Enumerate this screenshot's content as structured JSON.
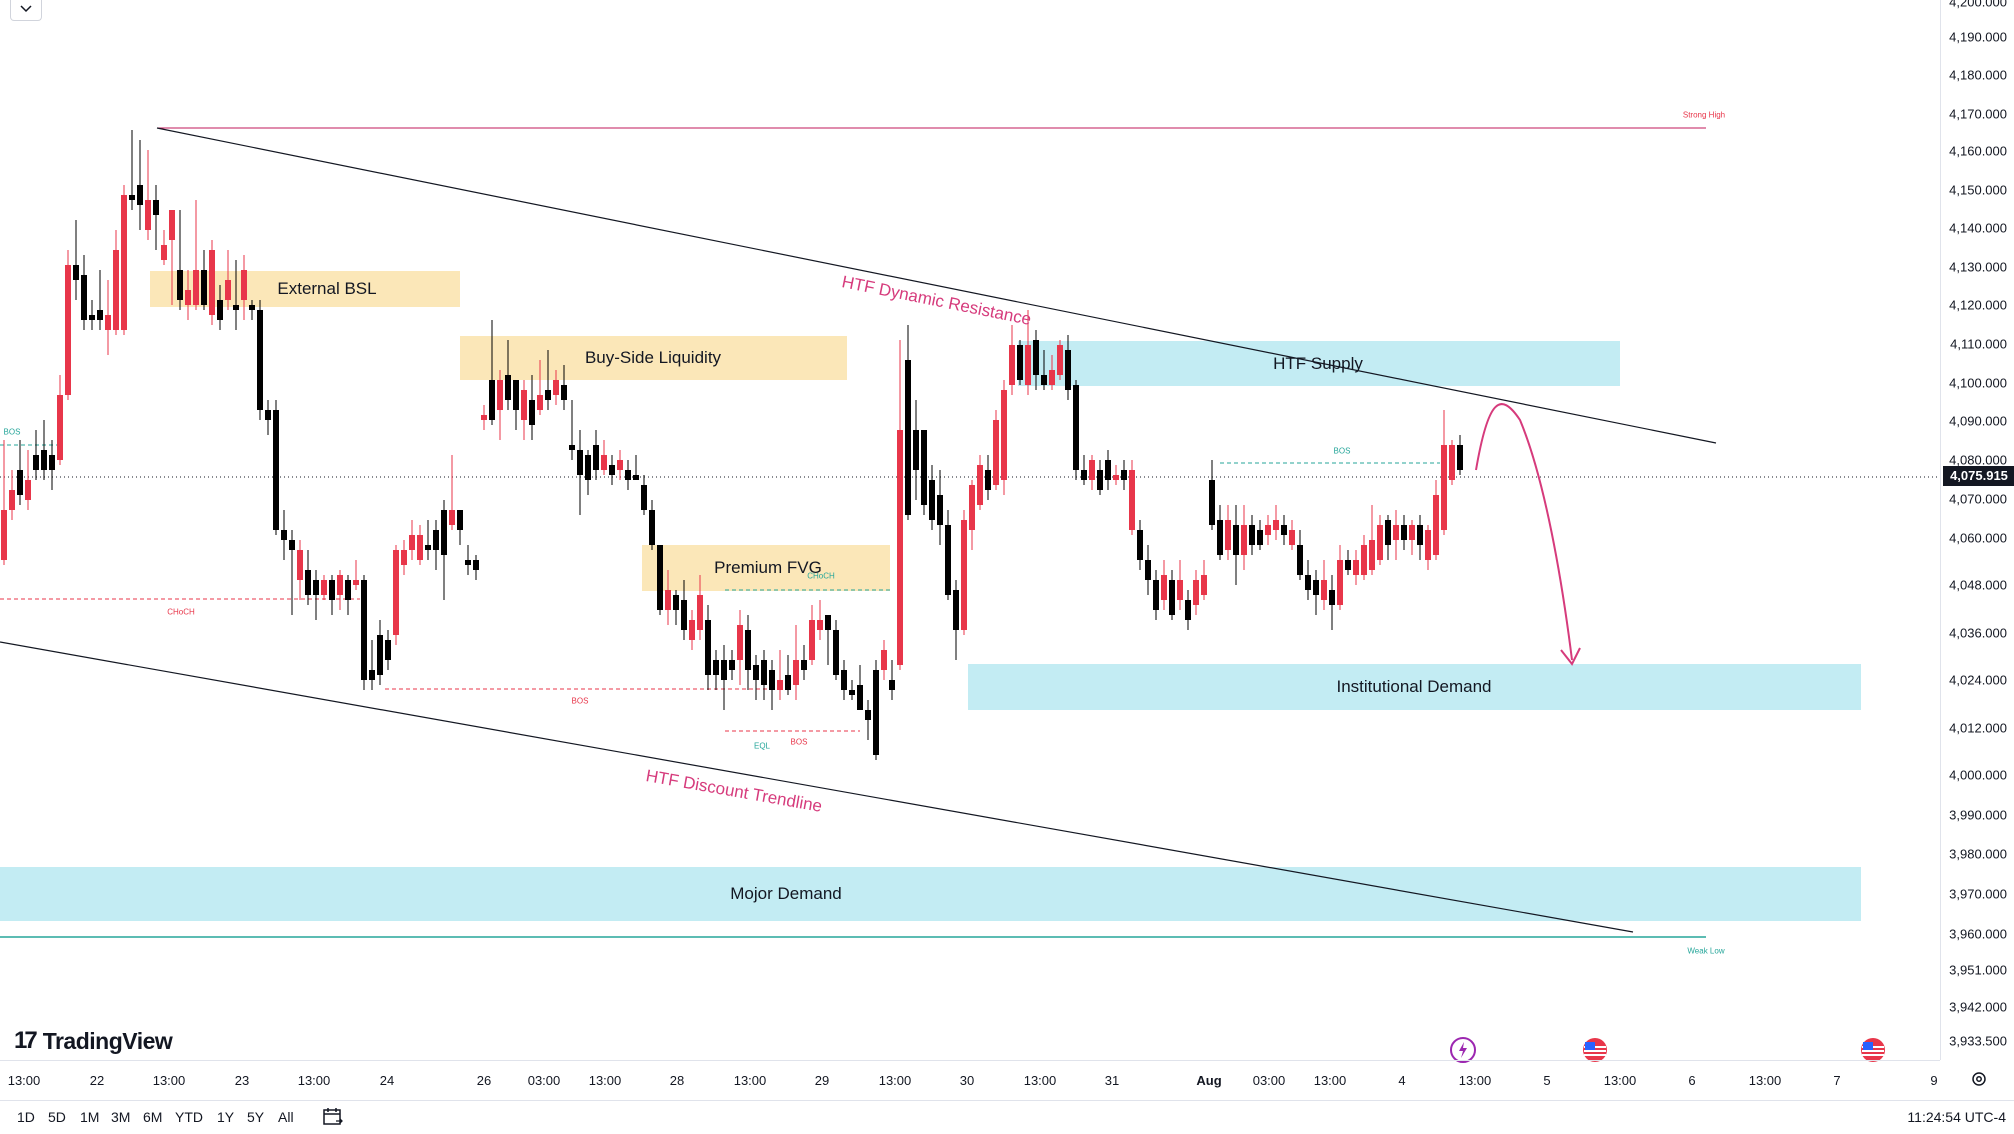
{
  "price_axis": {
    "ticks": [
      "4,200.000",
      "4,190.000",
      "4,180.000",
      "4,170.000",
      "4,160.000",
      "4,150.000",
      "4,140.000",
      "4,130.000",
      "4,120.000",
      "4,110.000",
      "4,100.000",
      "4,090.000",
      "4,080.000",
      "4,070.000",
      "4,060.000",
      "4,048.000",
      "4,036.000",
      "4,024.000",
      "4,012.000",
      "4,000.000",
      "3,990.000",
      "3,980.000",
      "3,970.000",
      "3,960.000",
      "3,951.000",
      "3,942.000",
      "3,933.500"
    ],
    "current_price": "4,075.915"
  },
  "time_axis": {
    "labels": [
      "13:00",
      "22",
      "13:00",
      "23",
      "13:00",
      "24",
      "26",
      "03:00",
      "13:00",
      "28",
      "13:00",
      "29",
      "13:00",
      "30",
      "13:00",
      "31",
      "Aug",
      "03:00",
      "13:00",
      "4",
      "13:00",
      "5",
      "13:00",
      "6",
      "13:00",
      "7",
      "9"
    ]
  },
  "annotations": {
    "external_bsl": "External BSL",
    "buy_side_liquidity": "Buy-Side Liquidity",
    "premium_fvg": "Premium FVG",
    "htf_supply": "HTF Supply",
    "institutional_demand": "Institutional Demand",
    "major_demand": "Mojor Demand",
    "htf_dynamic_resistance": "HTF Dynamic Resistance",
    "htf_discount_trendline": "HTF Discount Trendline",
    "strong_high": "Strong High",
    "weak_low": "Weak Low",
    "bos_1": "BOS",
    "bos_2": "BOS",
    "bos_3": "BOS",
    "bos_4": "BOS",
    "choch_1": "CHoCH",
    "choch_2": "CHoCH",
    "eql": "EQL"
  },
  "colors": {
    "bull_candle": "#e8364a",
    "bear_candle": "#000000",
    "supply_zone": "#c3ecf3",
    "liquidity_zone": "#fbe7b8",
    "annotation_pink": "#d63b7c",
    "bos_teal": "#26a69a",
    "choch_red": "#e8364a"
  },
  "range_buttons": [
    "1D",
    "5D",
    "1M",
    "3M",
    "6M",
    "YTD",
    "1Y",
    "5Y",
    "All"
  ],
  "clock": "11:24:54 UTC-4",
  "logo": {
    "mark": "17",
    "text": "TradingView"
  }
}
